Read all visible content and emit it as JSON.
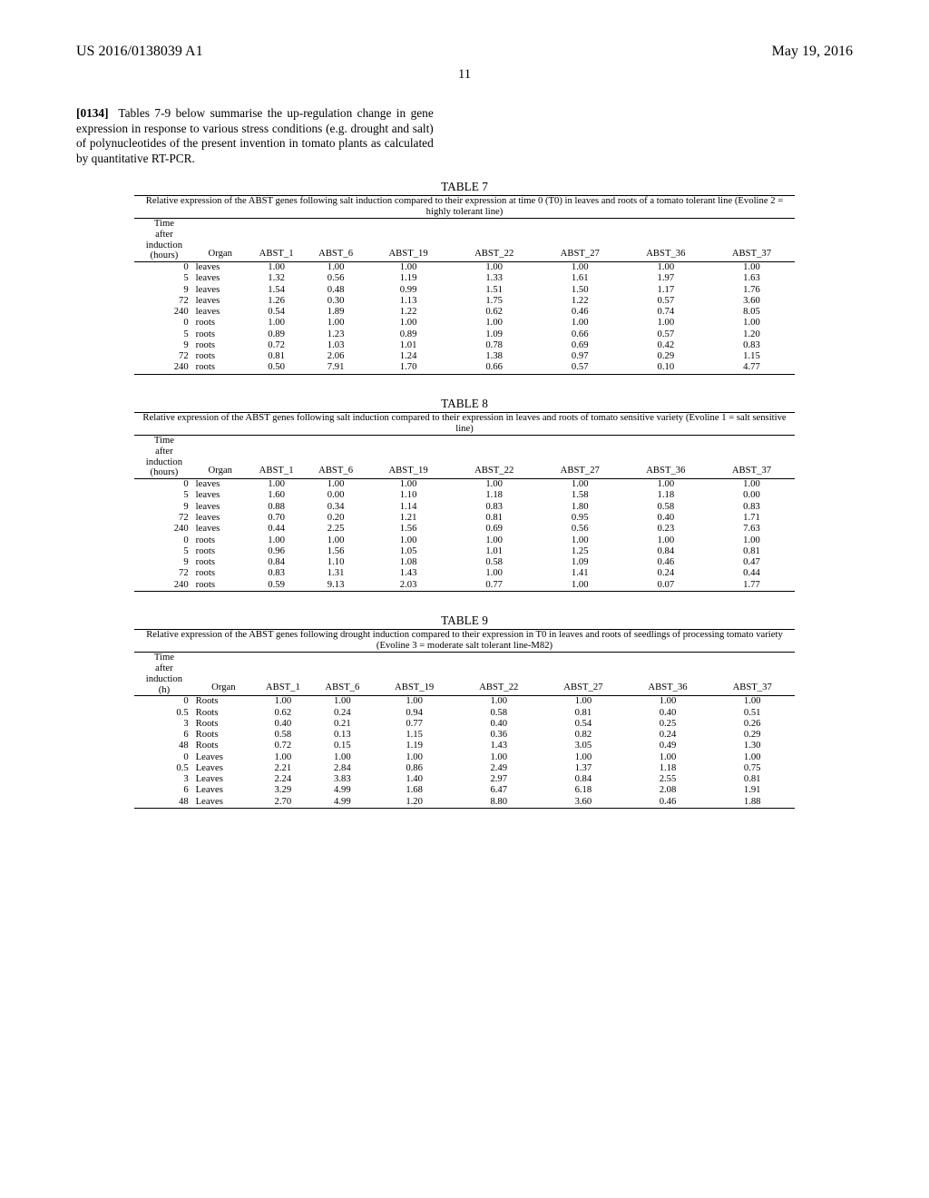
{
  "header": {
    "docnum": "US 2016/0138039 A1",
    "pubdate": "May 19, 2016",
    "pagenum": "11"
  },
  "paragraph": {
    "ref": "[0134]",
    "text": "Tables 7-9 below summarise the up-regulation change in gene expression in response to various stress conditions (e.g. drought and salt) of polynucleotides of the present invention in tomato plants as calculated by quantitative RT-PCR."
  },
  "tables": {
    "t7": {
      "caption": "TABLE 7",
      "subtitle": "Relative expression of the ABST genes following salt induction compared to their expression at time 0 (T0) in leaves and roots of a tomato tolerant line (Evoline 2 = highly tolerant line)",
      "corner": "Time\nafter\ninduction\n(hours)",
      "cols": [
        "Organ",
        "ABST_1",
        "ABST_6",
        "ABST_19",
        "ABST_22",
        "ABST_27",
        "ABST_36",
        "ABST_37"
      ],
      "rows": [
        [
          "0",
          "leaves",
          "1.00",
          "1.00",
          "1.00",
          "1.00",
          "1.00",
          "1.00",
          "1.00"
        ],
        [
          "5",
          "leaves",
          "1.32",
          "0.56",
          "1.19",
          "1.33",
          "1.61",
          "1.97",
          "1.63"
        ],
        [
          "9",
          "leaves",
          "1.54",
          "0.48",
          "0.99",
          "1.51",
          "1.50",
          "1.17",
          "1.76"
        ],
        [
          "72",
          "leaves",
          "1.26",
          "0.30",
          "1.13",
          "1.75",
          "1.22",
          "0.57",
          "3.60"
        ],
        [
          "240",
          "leaves",
          "0.54",
          "1.89",
          "1.22",
          "0.62",
          "0.46",
          "0.74",
          "8.05"
        ],
        [
          "0",
          "roots",
          "1.00",
          "1.00",
          "1.00",
          "1.00",
          "1.00",
          "1.00",
          "1.00"
        ],
        [
          "5",
          "roots",
          "0.89",
          "1.23",
          "0.89",
          "1.09",
          "0.66",
          "0.57",
          "1.20"
        ],
        [
          "9",
          "roots",
          "0.72",
          "1.03",
          "1.01",
          "0.78",
          "0.69",
          "0.42",
          "0.83"
        ],
        [
          "72",
          "roots",
          "0.81",
          "2.06",
          "1.24",
          "1.38",
          "0.97",
          "0.29",
          "1.15"
        ],
        [
          "240",
          "roots",
          "0.50",
          "7.91",
          "1.70",
          "0.66",
          "0.57",
          "0.10",
          "4.77"
        ]
      ]
    },
    "t8": {
      "caption": "TABLE 8",
      "subtitle": "Relative expression of the ABST genes following salt induction compared to their expression in leaves and roots of tomato sensitive variety (Evoline 1 = salt sensitive line)",
      "corner": "Time\nafter\ninduction\n(hours)",
      "cols": [
        "Organ",
        "ABST_1",
        "ABST_6",
        "ABST_19",
        "ABST_22",
        "ABST_27",
        "ABST_36",
        "ABST_37"
      ],
      "rows": [
        [
          "0",
          "leaves",
          "1.00",
          "1.00",
          "1.00",
          "1.00",
          "1.00",
          "1.00",
          "1.00"
        ],
        [
          "5",
          "leaves",
          "1.60",
          "0.00",
          "1.10",
          "1.18",
          "1.58",
          "1.18",
          "0.00"
        ],
        [
          "9",
          "leaves",
          "0.88",
          "0.34",
          "1.14",
          "0.83",
          "1.80",
          "0.58",
          "0.83"
        ],
        [
          "72",
          "leaves",
          "0.70",
          "0.20",
          "1.21",
          "0.81",
          "0.95",
          "0.40",
          "1.71"
        ],
        [
          "240",
          "leaves",
          "0.44",
          "2.25",
          "1.56",
          "0.69",
          "0.56",
          "0.23",
          "7.63"
        ],
        [
          "0",
          "roots",
          "1.00",
          "1.00",
          "1.00",
          "1.00",
          "1.00",
          "1.00",
          "1.00"
        ],
        [
          "5",
          "roots",
          "0.96",
          "1.56",
          "1.05",
          "1.01",
          "1.25",
          "0.84",
          "0.81"
        ],
        [
          "9",
          "roots",
          "0.84",
          "1.10",
          "1.08",
          "0.58",
          "1.09",
          "0.46",
          "0.47"
        ],
        [
          "72",
          "roots",
          "0.83",
          "1.31",
          "1.43",
          "1.00",
          "1.41",
          "0.24",
          "0.44"
        ],
        [
          "240",
          "roots",
          "0.59",
          "9.13",
          "2.03",
          "0.77",
          "1.00",
          "0.07",
          "1.77"
        ]
      ]
    },
    "t9": {
      "caption": "TABLE 9",
      "subtitle": "Relative expression of the ABST genes following drought induction compared to their expression in T0 in leaves and roots of seedlings of processing tomato variety (Evoline 3 = moderate salt tolerant line-M82)",
      "corner": "Time\nafter\ninduction\n(h)",
      "cols": [
        "Organ",
        "ABST_1",
        "ABST_6",
        "ABST_19",
        "ABST_22",
        "ABST_27",
        "ABST_36",
        "ABST_37"
      ],
      "rows": [
        [
          "0",
          "Roots",
          "1.00",
          "1.00",
          "1.00",
          "1.00",
          "1.00",
          "1.00",
          "1.00"
        ],
        [
          "0.5",
          "Roots",
          "0.62",
          "0.24",
          "0.94",
          "0.58",
          "0.81",
          "0.40",
          "0.51"
        ],
        [
          "3",
          "Roots",
          "0.40",
          "0.21",
          "0.77",
          "0.40",
          "0.54",
          "0.25",
          "0.26"
        ],
        [
          "6",
          "Roots",
          "0.58",
          "0.13",
          "1.15",
          "0.36",
          "0.82",
          "0.24",
          "0.29"
        ],
        [
          "48",
          "Roots",
          "0.72",
          "0.15",
          "1.19",
          "1.43",
          "3.05",
          "0.49",
          "1.30"
        ],
        [
          "0",
          "Leaves",
          "1.00",
          "1.00",
          "1.00",
          "1.00",
          "1.00",
          "1.00",
          "1.00"
        ],
        [
          "0.5",
          "Leaves",
          "2.21",
          "2.84",
          "0.86",
          "2.49",
          "1.37",
          "1.18",
          "0.75"
        ],
        [
          "3",
          "Leaves",
          "2.24",
          "3.83",
          "1.40",
          "2.97",
          "0.84",
          "2.55",
          "0.81"
        ],
        [
          "6",
          "Leaves",
          "3.29",
          "4.99",
          "1.68",
          "6.47",
          "6.18",
          "2.08",
          "1.91"
        ],
        [
          "48",
          "Leaves",
          "2.70",
          "4.99",
          "1.20",
          "8.80",
          "3.60",
          "0.46",
          "1.88"
        ]
      ]
    }
  }
}
